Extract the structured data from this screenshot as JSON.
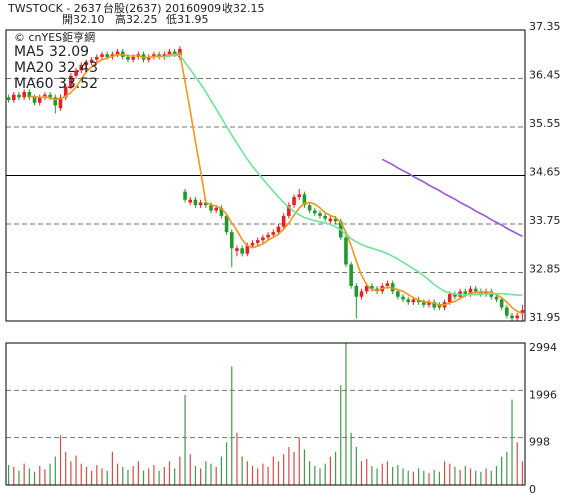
{
  "chart_data": [
    {
      "type": "candlestick",
      "title": "TWSTOCK - 2637",
      "subtitle": "台股(2637) 20160909",
      "quote_labels": {
        "close": "收32.15",
        "open": "開32.10",
        "high": "高32.25",
        "low": "低31.95"
      },
      "source": "© cnYES鉅亨網",
      "up_color": "#e82020",
      "down_color": "#1f9a2a",
      "ylim": [
        31.95,
        37.35
      ],
      "yticks": [
        37.35,
        36.45,
        35.55,
        34.65,
        33.75,
        32.85,
        31.95
      ],
      "grid": true,
      "ref_line": 34.65,
      "open": [
        36.1,
        36.05,
        36.15,
        36.1,
        36.2,
        36.1,
        36.0,
        36.1,
        36.15,
        36.1,
        35.9,
        36.1,
        36.3,
        36.5,
        36.6,
        36.7,
        36.75,
        36.8,
        36.85,
        36.9,
        36.85,
        36.9,
        36.95,
        36.85,
        36.8,
        36.85,
        36.9,
        36.8,
        36.85,
        36.9,
        36.85,
        36.9,
        36.95,
        36.85,
        34.35,
        34.15,
        34.2,
        34.1,
        34.15,
        34.1,
        34.0,
        34.05,
        33.9,
        33.6,
        33.25,
        33.3,
        33.2,
        33.35,
        33.4,
        33.45,
        33.5,
        33.55,
        33.6,
        33.7,
        33.9,
        34.1,
        34.25,
        34.3,
        34.1,
        34.0,
        33.95,
        33.9,
        33.8,
        33.85,
        33.8,
        33.5,
        33.0,
        32.6,
        32.4,
        32.5,
        32.6,
        32.55,
        32.5,
        32.6,
        32.65,
        32.5,
        32.4,
        32.35,
        32.3,
        32.35,
        32.3,
        32.25,
        32.3,
        32.25,
        32.2,
        32.3,
        32.45,
        32.4,
        32.5,
        32.45,
        32.55,
        32.5,
        32.45,
        32.5,
        32.4,
        32.35,
        32.2,
        32.05,
        32.0,
        32.1
      ],
      "high": [
        36.15,
        36.2,
        36.2,
        36.25,
        36.25,
        36.15,
        36.15,
        36.2,
        36.2,
        36.15,
        36.15,
        36.35,
        36.55,
        36.65,
        36.75,
        36.8,
        36.85,
        36.9,
        36.95,
        36.95,
        36.95,
        37.0,
        37.0,
        36.9,
        36.9,
        36.95,
        36.95,
        36.9,
        36.95,
        36.95,
        36.95,
        37.0,
        37.0,
        37.05,
        34.4,
        34.25,
        34.25,
        34.2,
        34.2,
        34.15,
        34.1,
        34.1,
        33.95,
        33.65,
        33.35,
        33.35,
        33.4,
        33.45,
        33.5,
        33.55,
        33.6,
        33.65,
        33.75,
        33.95,
        34.15,
        34.3,
        34.4,
        34.35,
        34.15,
        34.05,
        34.0,
        33.95,
        33.9,
        33.9,
        33.85,
        33.55,
        33.05,
        32.65,
        32.55,
        32.65,
        32.65,
        32.6,
        32.65,
        32.7,
        32.7,
        32.55,
        32.45,
        32.4,
        32.4,
        32.4,
        32.35,
        32.35,
        32.35,
        32.3,
        32.35,
        32.5,
        32.5,
        32.55,
        32.55,
        32.6,
        32.6,
        32.55,
        32.55,
        32.55,
        32.45,
        32.4,
        32.25,
        32.1,
        32.1,
        32.25
      ],
      "low": [
        36.0,
        36.0,
        36.05,
        36.05,
        36.05,
        35.95,
        35.95,
        36.05,
        36.05,
        35.8,
        35.85,
        36.05,
        36.25,
        36.45,
        36.55,
        36.65,
        36.7,
        36.75,
        36.8,
        36.8,
        36.8,
        36.85,
        36.8,
        36.75,
        36.75,
        36.8,
        36.75,
        36.75,
        36.8,
        36.8,
        36.8,
        36.85,
        36.85,
        36.8,
        34.15,
        34.1,
        34.05,
        34.05,
        34.05,
        33.95,
        33.95,
        33.85,
        33.55,
        32.95,
        33.15,
        33.15,
        33.15,
        33.3,
        33.35,
        33.4,
        33.45,
        33.5,
        33.55,
        33.65,
        33.85,
        34.05,
        34.2,
        34.05,
        33.95,
        33.9,
        33.85,
        33.8,
        33.75,
        33.75,
        33.45,
        32.95,
        32.55,
        32.0,
        32.35,
        32.45,
        32.5,
        32.45,
        32.45,
        32.55,
        32.45,
        32.35,
        32.3,
        32.25,
        32.25,
        32.25,
        32.2,
        32.2,
        32.15,
        32.15,
        32.15,
        32.25,
        32.35,
        32.35,
        32.4,
        32.4,
        32.45,
        32.4,
        32.4,
        32.35,
        32.3,
        32.15,
        32.0,
        31.95,
        31.95,
        31.95
      ],
      "close": [
        36.05,
        36.15,
        36.1,
        36.2,
        36.1,
        36.0,
        36.1,
        36.15,
        36.1,
        35.95,
        36.1,
        36.3,
        36.5,
        36.6,
        36.7,
        36.75,
        36.8,
        36.85,
        36.9,
        36.85,
        36.9,
        36.95,
        36.85,
        36.8,
        36.85,
        36.9,
        36.8,
        36.85,
        36.9,
        36.85,
        36.9,
        36.95,
        36.9,
        37.0,
        34.2,
        34.2,
        34.1,
        34.15,
        34.1,
        34.0,
        34.05,
        33.9,
        33.6,
        33.3,
        33.3,
        33.2,
        33.35,
        33.4,
        33.45,
        33.5,
        33.55,
        33.6,
        33.7,
        33.9,
        34.1,
        34.25,
        34.3,
        34.1,
        34.0,
        33.95,
        33.9,
        33.85,
        33.85,
        33.8,
        33.5,
        33.0,
        32.6,
        32.4,
        32.5,
        32.6,
        32.55,
        32.5,
        32.6,
        32.65,
        32.5,
        32.4,
        32.35,
        32.3,
        32.35,
        32.3,
        32.25,
        32.3,
        32.2,
        32.2,
        32.3,
        32.45,
        32.4,
        32.5,
        32.45,
        32.55,
        32.5,
        32.45,
        32.5,
        32.4,
        32.35,
        32.2,
        32.05,
        32.0,
        32.05,
        32.15
      ],
      "series": [
        {
          "name": "MA5 32.09",
          "color": "#f7941d",
          "values": [
            null,
            null,
            null,
            null,
            36.12,
            36.11,
            36.1,
            36.11,
            36.09,
            36.06,
            36.08,
            36.12,
            36.19,
            36.29,
            36.44,
            36.57,
            36.67,
            36.74,
            36.8,
            36.83,
            36.86,
            36.89,
            36.89,
            36.87,
            36.87,
            36.87,
            36.84,
            36.84,
            36.86,
            36.86,
            36.86,
            36.89,
            36.9,
            36.92,
            36.39,
            35.85,
            35.28,
            34.73,
            34.15,
            34.11,
            34.08,
            34.04,
            33.93,
            33.77,
            33.63,
            33.46,
            33.35,
            33.31,
            33.34,
            33.38,
            33.45,
            33.5,
            33.56,
            33.65,
            33.77,
            33.91,
            34.05,
            34.13,
            34.15,
            34.12,
            34.05,
            33.96,
            33.91,
            33.87,
            33.78,
            33.6,
            33.35,
            33.06,
            32.8,
            32.62,
            32.53,
            32.51,
            32.55,
            32.58,
            32.56,
            32.53,
            32.5,
            32.44,
            32.38,
            32.34,
            32.31,
            32.3,
            32.28,
            32.25,
            32.25,
            32.29,
            32.31,
            32.37,
            32.42,
            32.47,
            32.48,
            32.49,
            32.49,
            32.48,
            32.44,
            32.38,
            32.3,
            32.2,
            32.13,
            32.09
          ]
        },
        {
          "name": "MA20 32.43",
          "color": "#6fe39a",
          "values": [
            null,
            null,
            null,
            null,
            null,
            null,
            null,
            null,
            null,
            null,
            null,
            null,
            null,
            null,
            null,
            null,
            null,
            null,
            null,
            null,
            null,
            null,
            null,
            null,
            null,
            null,
            null,
            null,
            null,
            null,
            36.85,
            36.87,
            36.88,
            36.88,
            36.75,
            36.62,
            36.48,
            36.35,
            36.2,
            36.04,
            35.88,
            35.72,
            35.56,
            35.4,
            35.25,
            35.1,
            34.95,
            34.82,
            34.7,
            34.58,
            34.47,
            34.36,
            34.25,
            34.15,
            34.06,
            33.98,
            33.92,
            33.87,
            33.84,
            33.81,
            33.79,
            33.77,
            33.74,
            33.7,
            33.64,
            33.56,
            33.48,
            33.42,
            33.37,
            33.33,
            33.3,
            33.27,
            33.24,
            33.2,
            33.15,
            33.1,
            33.04,
            32.98,
            32.92,
            32.86,
            32.79,
            32.71,
            32.63,
            32.56,
            32.5,
            32.47,
            32.45,
            32.44,
            32.44,
            32.44,
            32.44,
            32.45,
            32.45,
            32.46,
            32.46,
            32.46,
            32.45,
            32.44,
            32.43,
            32.43
          ]
        },
        {
          "name": "MA60 33.52",
          "color": "#9b55e0",
          "values": [
            null,
            null,
            null,
            null,
            null,
            null,
            null,
            null,
            null,
            null,
            null,
            null,
            null,
            null,
            null,
            null,
            null,
            null,
            null,
            null,
            null,
            null,
            null,
            null,
            null,
            null,
            null,
            null,
            null,
            null,
            null,
            null,
            null,
            null,
            null,
            null,
            null,
            null,
            null,
            null,
            null,
            null,
            null,
            null,
            null,
            null,
            null,
            null,
            null,
            null,
            null,
            null,
            null,
            null,
            null,
            null,
            null,
            null,
            null,
            null,
            null,
            null,
            null,
            null,
            null,
            null,
            null,
            null,
            null,
            null,
            null,
            null,
            34.95,
            34.9,
            34.85,
            34.79,
            34.74,
            34.69,
            34.63,
            34.58,
            34.53,
            34.47,
            34.42,
            34.37,
            34.31,
            34.26,
            34.21,
            34.15,
            34.1,
            34.05,
            33.99,
            33.94,
            33.89,
            33.83,
            33.78,
            33.73,
            33.67,
            33.62,
            33.57,
            33.52
          ]
        }
      ]
    },
    {
      "type": "bar",
      "up_color": "#d94a4a",
      "down_color": "#3f9a4a",
      "ylim": [
        0,
        2994
      ],
      "yticks": [
        0,
        998,
        1996,
        2994
      ],
      "grid": true,
      "values": [
        420,
        380,
        300,
        450,
        350,
        280,
        400,
        330,
        450,
        600,
        1050,
        700,
        500,
        620,
        450,
        380,
        300,
        420,
        350,
        300,
        700,
        450,
        380,
        320,
        400,
        500,
        300,
        350,
        420,
        300,
        380,
        500,
        350,
        600,
        1900,
        650,
        400,
        350,
        500,
        450,
        380,
        600,
        900,
        2500,
        1100,
        600,
        500,
        400,
        350,
        450,
        380,
        600,
        500,
        650,
        800,
        700,
        1000,
        750,
        500,
        400,
        350,
        450,
        600,
        700,
        2100,
        2994,
        1100,
        800,
        500,
        550,
        400,
        350,
        450,
        500,
        380,
        420,
        350,
        300,
        280,
        350,
        300,
        250,
        320,
        280,
        500,
        450,
        380,
        320,
        400,
        350,
        300,
        280,
        350,
        300,
        400,
        600,
        700,
        1800,
        900,
        500
      ]
    }
  ]
}
